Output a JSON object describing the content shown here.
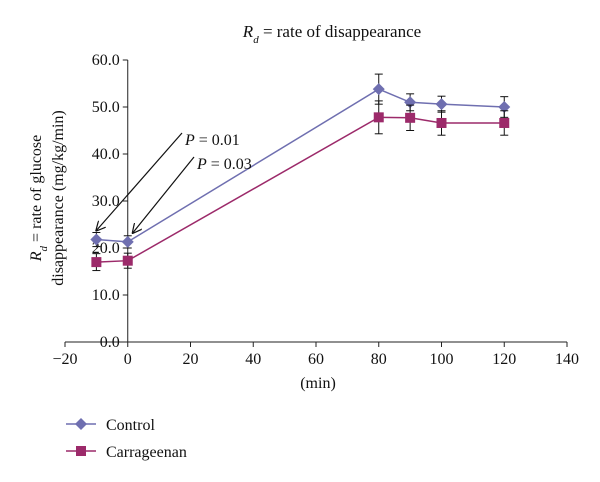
{
  "chart_data": {
    "type": "line",
    "title_prefix": "R",
    "title_sub": "d",
    "title_rest": " = rate of disappearance",
    "xlabel": "(min)",
    "ylabel_line1_prefix": "R",
    "ylabel_line1_sub": "d",
    "ylabel_line1_rest": " = rate of glucose",
    "ylabel_line2": "disappearance (mg/kg/min)",
    "xlim": [
      -20,
      140
    ],
    "ylim": [
      0,
      60
    ],
    "x_ticks": [
      "−20",
      "0",
      "20",
      "40",
      "60",
      "80",
      "100",
      "120",
      "140"
    ],
    "y_ticks": [
      "0.0",
      "10.0",
      "20.0",
      "30.0",
      "40.0",
      "50.0",
      "60.0"
    ],
    "x_tick_values": [
      -20,
      0,
      20,
      40,
      60,
      80,
      100,
      120,
      140
    ],
    "y_tick_values": [
      0,
      10,
      20,
      30,
      40,
      50,
      60
    ],
    "series": [
      {
        "name": "Control",
        "color": "#6f6fb0",
        "marker": "diamond",
        "x": [
          -10,
          0,
          80,
          90,
          100,
          120
        ],
        "y": [
          21.8,
          21.3,
          53.8,
          51.0,
          50.6,
          50.0
        ],
        "err": [
          1.5,
          1.3,
          3.2,
          1.8,
          1.7,
          2.2
        ]
      },
      {
        "name": "Carrageenan",
        "color": "#9c2a6a",
        "marker": "square",
        "x": [
          -10,
          0,
          80,
          90,
          100,
          120
        ],
        "y": [
          17.0,
          17.3,
          47.8,
          47.7,
          46.6,
          46.6
        ],
        "err": [
          1.8,
          1.6,
          3.5,
          2.7,
          2.6,
          2.6
        ]
      }
    ],
    "annotations": [
      {
        "var": "P",
        "rest": " = 0.01",
        "x": -10,
        "y": 21.8
      },
      {
        "var": "P",
        "rest": " = 0.03",
        "x": 0,
        "y": 21.3
      }
    ]
  }
}
